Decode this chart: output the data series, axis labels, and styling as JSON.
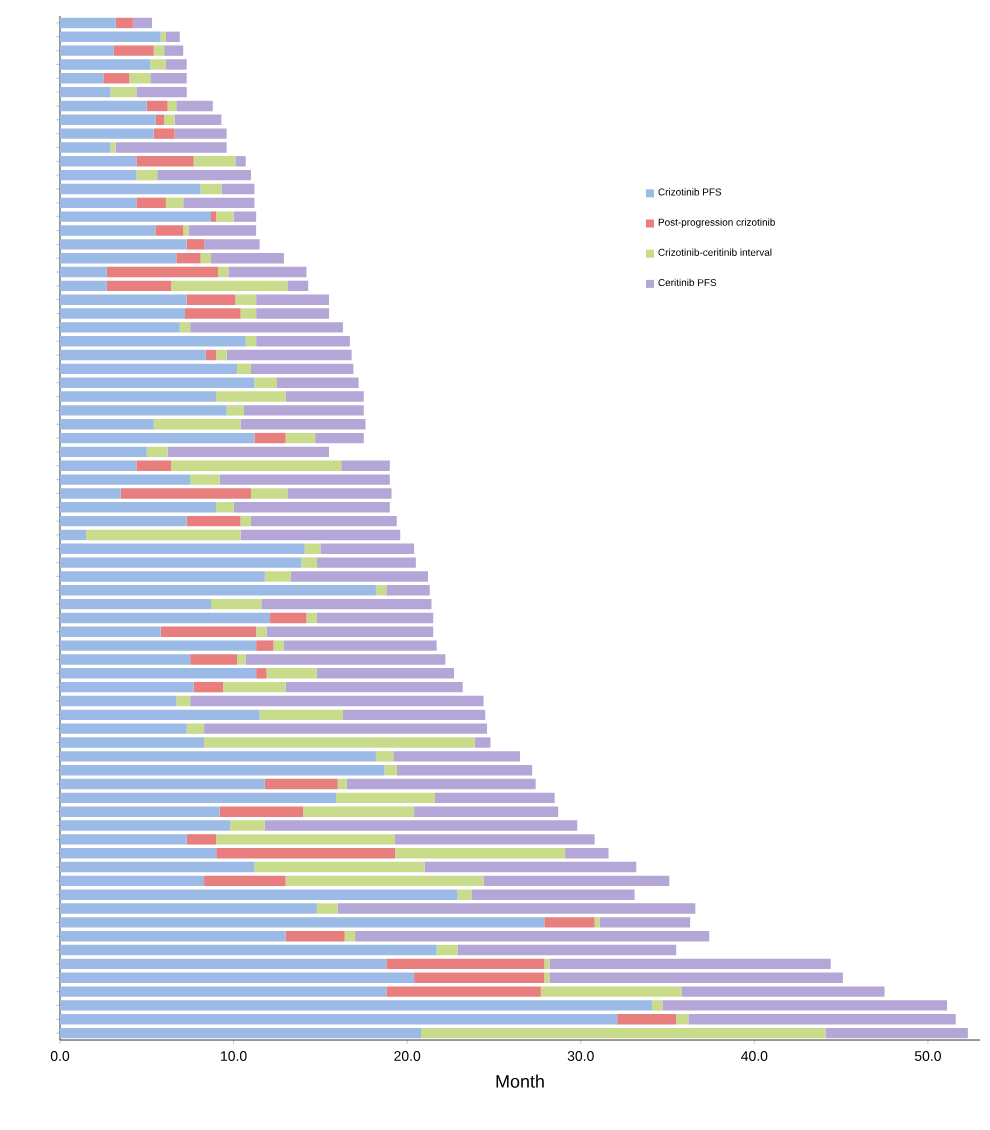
{
  "chart_data": {
    "type": "bar",
    "orientation": "horizontal",
    "stacked": true,
    "xlabel": "Month",
    "categories": [
      null,
      null,
      null,
      null,
      null,
      null,
      null,
      null,
      null,
      null,
      null,
      null,
      null,
      null,
      null,
      null,
      null,
      null,
      null,
      null,
      null,
      null,
      null,
      null,
      null,
      null,
      null,
      null,
      null,
      null,
      null,
      null,
      null,
      null,
      null,
      null,
      null,
      null,
      null,
      null,
      null,
      null,
      null,
      null,
      null,
      null,
      null,
      null,
      null,
      null,
      null,
      null,
      null,
      null,
      null,
      null,
      null,
      null,
      null,
      null,
      null,
      null,
      null,
      null,
      null,
      null,
      null,
      null,
      null,
      null,
      null,
      null,
      null,
      null
    ],
    "xlim": [
      0,
      53
    ],
    "xticks": [
      {
        "value": 0,
        "label": "0.0"
      },
      {
        "value": 10,
        "label": "10.0"
      },
      {
        "value": 20,
        "label": "20.0"
      },
      {
        "value": 30,
        "label": "30.0"
      },
      {
        "value": 40,
        "label": "40.0"
      },
      {
        "value": 50,
        "label": "50.0"
      }
    ],
    "legend": "top right",
    "series": [
      {
        "name": "Crizotinib PFS",
        "color": "#9bbbe6",
        "values": [
          3.2,
          5.8,
          3.1,
          5.2,
          2.5,
          2.9,
          5.0,
          5.5,
          5.4,
          2.9,
          4.4,
          4.4,
          8.1,
          4.4,
          8.7,
          5.5,
          7.3,
          6.7,
          2.7,
          2.7,
          7.3,
          7.2,
          6.9,
          10.7,
          8.4,
          10.2,
          11.2,
          9.0,
          9.6,
          5.4,
          11.2,
          5.0,
          4.4,
          7.5,
          3.5,
          9.0,
          7.3,
          1.5,
          14.1,
          13.9,
          11.8,
          18.2,
          8.7,
          12.1,
          5.8,
          11.3,
          7.5,
          11.3,
          7.7,
          6.7,
          11.5,
          7.3,
          8.3,
          18.2,
          18.7,
          11.8,
          15.9,
          9.2,
          9.8,
          7.3,
          9.0,
          11.2,
          8.3,
          22.9,
          14.8,
          27.9,
          13.0,
          21.7,
          18.8,
          20.4,
          18.8,
          34.1,
          32.1,
          20.8
        ]
      },
      {
        "name": "Post-progression crizotinib",
        "color": "#e87e7e",
        "values": [
          1.0,
          0,
          2.3,
          0,
          1.5,
          0,
          1.2,
          0.5,
          1.2,
          0,
          3.3,
          0,
          0,
          1.7,
          0.3,
          1.6,
          1.0,
          1.4,
          6.4,
          3.7,
          2.8,
          3.2,
          0,
          0,
          0.6,
          0,
          0,
          0,
          0,
          0,
          1.8,
          0,
          2.0,
          0,
          7.5,
          0,
          3.1,
          0,
          0,
          0,
          0,
          0,
          0,
          2.1,
          5.5,
          1.0,
          2.7,
          0.6,
          1.7,
          0,
          0,
          0,
          0,
          0,
          0,
          4.2,
          0,
          4.8,
          0,
          1.7,
          10.3,
          0,
          4.7,
          0,
          0,
          2.9,
          3.4,
          0,
          9.1,
          7.5,
          8.9,
          0,
          3.4,
          0
        ]
      },
      {
        "name": "Crizotinib-ceritinib interval",
        "color": "#c8dc8c",
        "values": [
          0,
          0.3,
          0.6,
          0.9,
          1.2,
          1.5,
          0.5,
          0.6,
          0,
          0.3,
          2.4,
          1.2,
          1.2,
          1.0,
          1.0,
          0.3,
          0,
          0.6,
          0.6,
          6.7,
          1.2,
          0.9,
          0.6,
          0.6,
          0.6,
          0.8,
          1.3,
          4.0,
          1.0,
          5.0,
          1.7,
          1.2,
          9.8,
          1.7,
          2.1,
          1.0,
          0.6,
          8.9,
          0.9,
          0.9,
          1.5,
          0.6,
          2.9,
          0.6,
          0.6,
          0.6,
          0.5,
          2.9,
          3.6,
          0.8,
          4.8,
          1.0,
          15.6,
          1.0,
          0.7,
          0.5,
          5.7,
          6.4,
          2.0,
          10.3,
          9.8,
          9.8,
          11.4,
          0.8,
          1.2,
          0.3,
          0.6,
          1.2,
          0.3,
          0.3,
          8.1,
          0.6,
          0.7,
          23.3
        ]
      },
      {
        "name": "Ceritinib PFS",
        "color": "#b4a6d6",
        "values": [
          1.1,
          0.8,
          1.1,
          1.2,
          2.1,
          2.9,
          2.1,
          2.7,
          3.0,
          6.4,
          0.6,
          5.4,
          1.9,
          4.1,
          1.3,
          3.9,
          3.2,
          4.2,
          4.5,
          1.2,
          4.2,
          4.2,
          8.8,
          5.4,
          7.2,
          5.9,
          4.7,
          4.5,
          6.9,
          7.2,
          2.8,
          9.3,
          2.8,
          9.8,
          6.0,
          9.0,
          8.4,
          9.2,
          5.4,
          5.7,
          7.9,
          2.5,
          9.8,
          6.7,
          9.6,
          8.8,
          11.5,
          7.9,
          10.2,
          16.9,
          8.2,
          16.3,
          0.9,
          7.3,
          7.8,
          10.9,
          6.9,
          8.3,
          18.0,
          11.5,
          2.5,
          12.2,
          10.7,
          9.4,
          20.6,
          5.2,
          20.4,
          12.6,
          16.2,
          16.9,
          11.7,
          16.4,
          15.4,
          8.2
        ]
      }
    ]
  }
}
